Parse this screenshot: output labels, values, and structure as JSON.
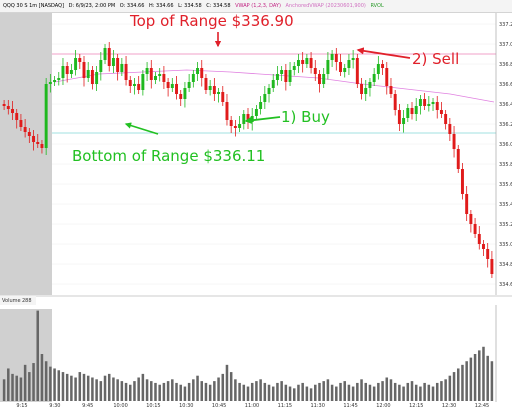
{
  "header": {
    "symbol": "QQQ 30 S 1m [NASDAQ]",
    "date_time": "D: 6/9/23, 2:00 PM",
    "open": "O: 334.66",
    "high": "H: 334.66",
    "low": "L: 334.58",
    "close": "C: 334.58",
    "vwap_label": "VWAP (1,2,3, DAY)",
    "anchored_vwap": "AnchoredVWAP (20230601,900)",
    "extra": "RVOL"
  },
  "volume_panel": {
    "title": "Volume",
    "value": "288"
  },
  "annotations": {
    "top": "Top of Range $336.90",
    "bottom": "Bottom of Range $336.11",
    "buy": "1) Buy",
    "sell": "2) Sell"
  },
  "colors": {
    "up": "#1fb81f",
    "down": "#e01b1b",
    "arrow_red": "#e0202a",
    "arrow_green": "#22c022",
    "premarket": "#d0d0d0",
    "vwap": "#e080e0",
    "range_line": "#f0a0c8",
    "bottom_line": "#a0e0e0"
  },
  "chart_data": {
    "type": "candlestick",
    "x_ticks": [
      "9:15",
      "9:30",
      "9:45",
      "10:00",
      "10:15",
      "10:30",
      "10:45",
      "11:00",
      "11:15",
      "11:30",
      "11:45",
      "12:00",
      "12:15",
      "12:30",
      "12:45"
    ],
    "y_ticks": [
      "337.2",
      "337.0",
      "336.8",
      "336.6",
      "336.4",
      "336.2",
      "336.0",
      "335.8",
      "335.6",
      "335.4",
      "335.2",
      "335.0",
      "334.8",
      "334.6"
    ],
    "ylim": [
      334.5,
      337.3
    ],
    "range_top": 336.9,
    "range_bottom": 336.11,
    "closes": [
      336.38,
      336.35,
      336.31,
      336.24,
      336.17,
      336.12,
      336.08,
      336.02,
      336.0,
      335.96,
      336.6,
      336.62,
      336.64,
      336.66,
      336.78,
      336.7,
      336.74,
      336.86,
      336.82,
      336.66,
      336.74,
      336.6,
      336.72,
      336.84,
      336.96,
      336.78,
      336.86,
      336.72,
      336.8,
      336.64,
      336.58,
      336.6,
      336.54,
      336.7,
      336.76,
      336.64,
      336.68,
      336.7,
      336.62,
      336.56,
      336.6,
      336.5,
      336.45,
      336.56,
      336.62,
      336.7,
      336.76,
      336.66,
      336.54,
      336.58,
      336.5,
      336.52,
      336.42,
      336.24,
      336.18,
      336.16,
      336.2,
      336.3,
      336.22,
      336.28,
      336.35,
      336.42,
      336.5,
      336.56,
      336.64,
      336.7,
      336.74,
      336.62,
      336.74,
      336.78,
      336.84,
      336.8,
      336.86,
      336.76,
      336.7,
      336.6,
      336.7,
      336.84,
      336.9,
      336.82,
      336.72,
      336.76,
      336.84,
      336.86,
      336.6,
      336.5,
      336.56,
      336.62,
      336.7,
      336.8,
      336.76,
      336.58,
      336.5,
      336.34,
      336.2,
      336.26,
      336.36,
      336.3,
      336.38,
      336.45,
      336.38,
      336.4,
      336.42,
      336.34,
      336.3,
      336.2,
      336.1,
      335.95,
      335.75,
      335.5,
      335.3,
      335.2,
      335.1,
      335.0,
      334.95,
      334.85,
      334.7
    ],
    "vwap": [
      336.62,
      336.7,
      336.72,
      336.74,
      336.72,
      336.69,
      336.66,
      336.6,
      336.55,
      336.5,
      336.42
    ],
    "volume": [
      120,
      180,
      150,
      140,
      130,
      200,
      160,
      210,
      500,
      260,
      220,
      190,
      180,
      170,
      160,
      150,
      140,
      130,
      160,
      150,
      140,
      130,
      120,
      110,
      140,
      150,
      130,
      120,
      110,
      100,
      90,
      110,
      130,
      150,
      120,
      110,
      100,
      90,
      100,
      110,
      120,
      100,
      90,
      80,
      100,
      120,
      140,
      110,
      100,
      90,
      110,
      130,
      150,
      200,
      160,
      120,
      100,
      90,
      80,
      100,
      110,
      120,
      100,
      90,
      80,
      100,
      110,
      90,
      80,
      70,
      90,
      100,
      80,
      70,
      90,
      100,
      110,
      120,
      90,
      80,
      100,
      110,
      90,
      80,
      100,
      120,
      100,
      90,
      80,
      100,
      110,
      130,
      120,
      100,
      90,
      80,
      100,
      110,
      90,
      80,
      100,
      90,
      80,
      100,
      110,
      120,
      140,
      160,
      180,
      200,
      220,
      240,
      260,
      280,
      300,
      250,
      220
    ]
  }
}
